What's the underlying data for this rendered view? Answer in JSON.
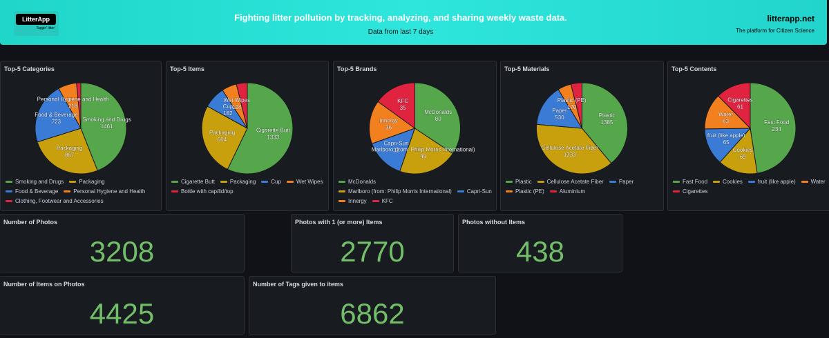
{
  "header": {
    "logo_name": "LitterApp",
    "logo_tagline": "Taggin' litter",
    "title": "Fighting litter pollution by tracking, analyzing, and sharing weekly waste data.",
    "subtitle": "Data from last 7 days",
    "site": "litterapp.net",
    "site_tagline": "The platform for Citizen Science"
  },
  "chart_data": [
    {
      "type": "pie",
      "title": "Top-5 Categories",
      "categories": [
        "Smoking and Drugs",
        "Packaging",
        "Food & Beverage",
        "Personal Hygiene and Health",
        "Clothing, Footwear and Accessories"
      ],
      "values": [
        1461,
        867,
        723,
        218,
        50
      ],
      "value_labels": [
        "1461",
        "867",
        "723",
        "218",
        null
      ],
      "colors": [
        "#56a64b",
        "#c8a00e",
        "#3a7bd5",
        "#f2801e",
        "#e0243f"
      ]
    },
    {
      "type": "pie",
      "title": "Top-5 Items",
      "categories": [
        "Cigarette Butt",
        "Packaging",
        "Cup",
        "Wet Wipes",
        "Bottle with cap/lid/top"
      ],
      "values": [
        1333,
        604,
        182,
        124,
        90
      ],
      "value_labels": [
        "1333",
        "604",
        "182",
        "124",
        null
      ],
      "colors": [
        "#56a64b",
        "#c8a00e",
        "#3a7bd5",
        "#f2801e",
        "#e0243f"
      ]
    },
    {
      "type": "pie",
      "title": "Top-5 Brands",
      "categories": [
        "McDonalds",
        "Marlboro (from: Philip Morris International)",
        "Capri-Sun",
        "Innergy",
        "KFC"
      ],
      "values": [
        80,
        49,
        33,
        36,
        35
      ],
      "value_labels": [
        "80",
        "49",
        "33",
        "36",
        "35"
      ],
      "colors": [
        "#56a64b",
        "#c8a00e",
        "#3a7bd5",
        "#f2801e",
        "#e0243f"
      ]
    },
    {
      "type": "pie",
      "title": "Top-5 Materials",
      "categories": [
        "Plastic",
        "Cellulose Acetate Fiber",
        "Paper",
        "Plastic (PE)",
        "Aluminium"
      ],
      "values": [
        1385,
        1333,
        530,
        170,
        140
      ],
      "value_labels": [
        "1385",
        "1333",
        "530",
        "170",
        null
      ],
      "colors": [
        "#56a64b",
        "#c8a00e",
        "#3a7bd5",
        "#f2801e",
        "#e0243f"
      ]
    },
    {
      "type": "pie",
      "title": "Top-5 Contents",
      "categories": [
        "Fast Food",
        "Cookies",
        "fruit (like apple)",
        "Water",
        "Cigarettes"
      ],
      "values": [
        234,
        69,
        65,
        63,
        61
      ],
      "value_labels": [
        "234",
        "69",
        "65",
        "63",
        "61"
      ],
      "colors": [
        "#56a64b",
        "#c8a00e",
        "#3a7bd5",
        "#f2801e",
        "#e0243f"
      ]
    }
  ],
  "stats": [
    {
      "title": "Number of Photos",
      "value": 3208
    },
    {
      "title": "Photos with 1 (or more) Items",
      "value": 2770
    },
    {
      "title": "Photos without Items",
      "value": 438
    },
    {
      "title": "Number of Items on Photos",
      "value": 4425
    },
    {
      "title": "Number of Tags given to items",
      "value": 6862
    }
  ]
}
